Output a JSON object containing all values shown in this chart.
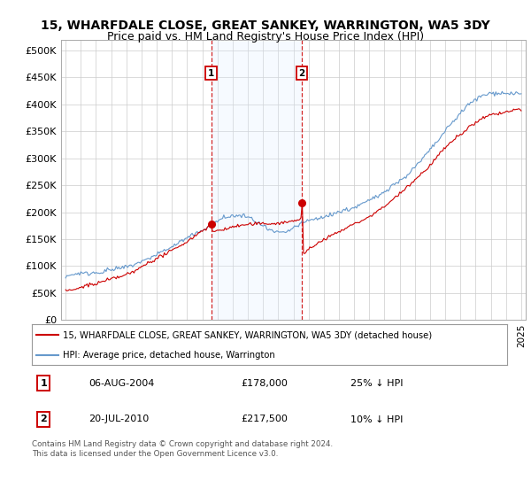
{
  "title": "15, WHARFDALE CLOSE, GREAT SANKEY, WARRINGTON, WA5 3DY",
  "subtitle": "Price paid vs. HM Land Registry's House Price Index (HPI)",
  "ylim": [
    0,
    520000
  ],
  "yticks": [
    0,
    50000,
    100000,
    150000,
    200000,
    250000,
    300000,
    350000,
    400000,
    450000,
    500000
  ],
  "xlim_start": 1994.7,
  "xlim_end": 2025.3,
  "sale1_date": 2004.59,
  "sale1_price": 178000,
  "sale1_label": "1",
  "sale2_date": 2010.55,
  "sale2_price": 217500,
  "sale2_label": "2",
  "hpi_color": "#6699cc",
  "price_color": "#cc0000",
  "dashed_color": "#cc0000",
  "shade_color": "#ddeeff",
  "legend_line1": "15, WHARFDALE CLOSE, GREAT SANKEY, WARRINGTON, WA5 3DY (detached house)",
  "legend_line2": "HPI: Average price, detached house, Warrington",
  "table_row1": [
    "1",
    "06-AUG-2004",
    "£178,000",
    "25% ↓ HPI"
  ],
  "table_row2": [
    "2",
    "20-JUL-2010",
    "£217,500",
    "10% ↓ HPI"
  ],
  "footnote": "Contains HM Land Registry data © Crown copyright and database right 2024.\nThis data is licensed under the Open Government Licence v3.0.",
  "title_fontsize": 10,
  "subtitle_fontsize": 9,
  "tick_fontsize": 8,
  "background_color": "#ffffff"
}
